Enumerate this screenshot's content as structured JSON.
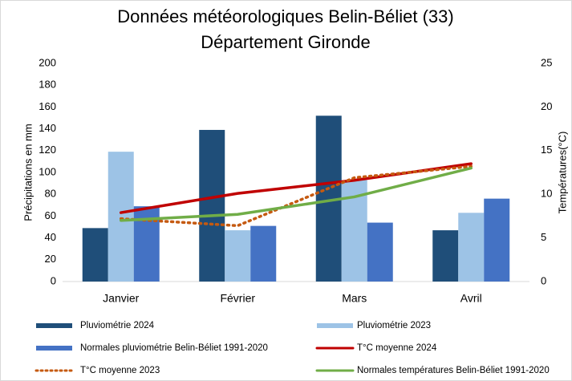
{
  "chart_data": {
    "type": "bar",
    "title": "Données météorologiques Belin-Béliet (33)",
    "subtitle": "Département Gironde",
    "ylabel": "Précipitations en mm",
    "y2label": "Températures(°C)",
    "categories": [
      "Janvier",
      "Février",
      "Mars",
      "Avril"
    ],
    "series": [
      {
        "name": "Pluviométrie 2024",
        "color": "#1f4e79",
        "values": [
          49,
          139,
          152,
          47
        ]
      },
      {
        "name": "Pluviométrie 2023",
        "color": "#9dc3e6",
        "values": [
          119,
          47,
          93,
          63
        ]
      },
      {
        "name": "Normales pluviométrie Belin-Béliet 1991-2020",
        "color": "#4472c4",
        "values": [
          69,
          51,
          54,
          76
        ]
      },
      {
        "name": "T°C moyenne 2024",
        "color": "#c00000",
        "type": "line",
        "axis": "y2",
        "values": [
          7.9,
          10.1,
          11.6,
          13.5
        ]
      },
      {
        "name": "T°C moyenne 2023",
        "color": "#c55a11",
        "type": "line",
        "axis": "y2",
        "dotted": true,
        "values": [
          7.2,
          6.4,
          11.9,
          13.2
        ]
      },
      {
        "name": "Normales températures Belin-Béliet 1991-2020",
        "color": "#70ad47",
        "type": "line",
        "axis": "y2",
        "values": [
          7.0,
          7.7,
          9.7,
          13.0
        ]
      }
    ],
    "ylim": [
      0,
      200
    ],
    "yticks": [
      0,
      20,
      40,
      60,
      80,
      100,
      120,
      140,
      160,
      180,
      200
    ],
    "y2lim": [
      0,
      25
    ],
    "y2ticks": [
      0,
      5,
      10,
      15,
      20,
      25
    ],
    "grid": false,
    "legend": "bottom"
  }
}
